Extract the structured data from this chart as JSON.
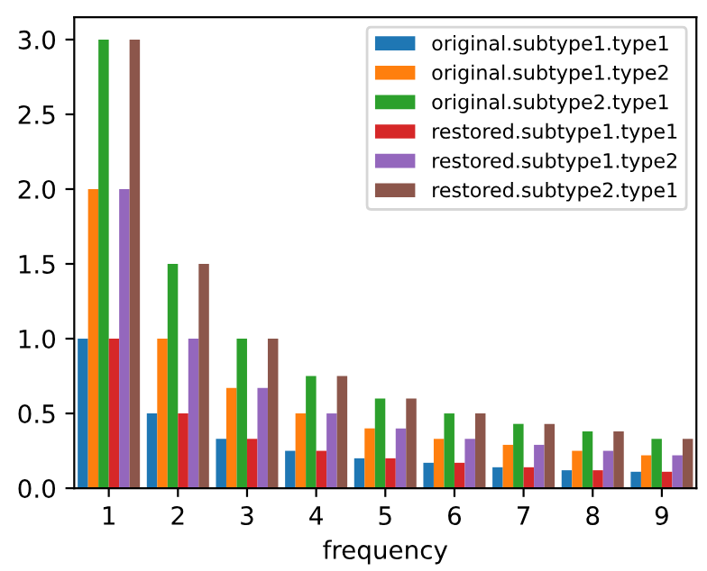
{
  "chart_data": {
    "type": "bar",
    "xlabel": "frequency",
    "categories": [
      "1",
      "2",
      "3",
      "4",
      "5",
      "6",
      "7",
      "8",
      "9"
    ],
    "series": [
      {
        "name": "original.subtype1.type1",
        "color": "#1f77b4",
        "values": [
          1.0,
          0.5,
          0.33,
          0.25,
          0.2,
          0.17,
          0.14,
          0.12,
          0.11
        ]
      },
      {
        "name": "original.subtype1.type2",
        "color": "#ff7f0e",
        "values": [
          2.0,
          1.0,
          0.67,
          0.5,
          0.4,
          0.33,
          0.29,
          0.25,
          0.22
        ]
      },
      {
        "name": "original.subtype2.type1",
        "color": "#2ca02c",
        "values": [
          3.0,
          1.5,
          1.0,
          0.75,
          0.6,
          0.5,
          0.43,
          0.38,
          0.33
        ]
      },
      {
        "name": "restored.subtype1.type1",
        "color": "#d62728",
        "values": [
          1.0,
          0.5,
          0.33,
          0.25,
          0.2,
          0.17,
          0.14,
          0.12,
          0.11
        ]
      },
      {
        "name": "restored.subtype1.type2",
        "color": "#9467bd",
        "values": [
          2.0,
          1.0,
          0.67,
          0.5,
          0.4,
          0.33,
          0.29,
          0.25,
          0.22
        ]
      },
      {
        "name": "restored.subtype2.type1",
        "color": "#8c564b",
        "values": [
          3.0,
          1.5,
          1.0,
          0.75,
          0.6,
          0.5,
          0.43,
          0.38,
          0.33
        ]
      }
    ],
    "ylim": [
      0,
      3.15
    ],
    "yticks": [
      {
        "value": 0,
        "label": "0.0"
      },
      {
        "value": 0.5,
        "label": "0.5"
      },
      {
        "value": 1,
        "label": "1.0"
      },
      {
        "value": 1.5,
        "label": "1.5"
      },
      {
        "value": 2,
        "label": "2.0"
      },
      {
        "value": 2.5,
        "label": "2.5"
      },
      {
        "value": 3,
        "label": "3.0"
      }
    ],
    "legend": "top right",
    "grid": false
  }
}
